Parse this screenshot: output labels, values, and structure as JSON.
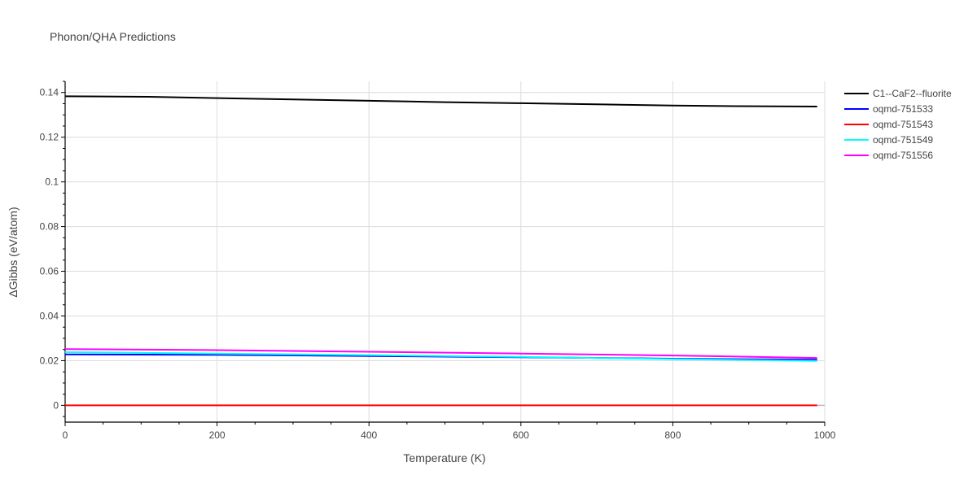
{
  "chart_data": {
    "type": "line",
    "title": "Phonon/QHA Predictions",
    "xlabel": "Temperature (K)",
    "ylabel": "ΔGibbs (eV/atom)",
    "xlim": [
      0,
      1000
    ],
    "ylim": [
      -0.0075,
      0.145
    ],
    "x_ticks": [
      0,
      200,
      400,
      600,
      800,
      1000
    ],
    "y_ticks": [
      0,
      0.02,
      0.04,
      0.06,
      0.08,
      0.1,
      0.12,
      0.14
    ],
    "x_tick_labels": [
      "0",
      "200",
      "400",
      "600",
      "800",
      "1000"
    ],
    "y_tick_labels": [
      "0",
      "0.02",
      "0.04",
      "0.06",
      "0.08",
      "0.1",
      "0.12",
      "0.14"
    ],
    "grid": true,
    "legend_position": "top-right outside plot",
    "series": [
      {
        "name": "C1--CaF2--fluorite",
        "color": "#000000",
        "x": [
          0,
          110,
          200,
          300,
          400,
          500,
          600,
          700,
          800,
          880,
          990
        ],
        "y": [
          0.1383,
          0.1381,
          0.1375,
          0.1369,
          0.1363,
          0.1357,
          0.1352,
          0.1347,
          0.1342,
          0.1339,
          0.1337
        ]
      },
      {
        "name": "oqmd-751533",
        "color": "#0000ff",
        "x": [
          0,
          200,
          400,
          600,
          800,
          990
        ],
        "y": [
          0.0228,
          0.0226,
          0.0221,
          0.0215,
          0.0209,
          0.0204
        ]
      },
      {
        "name": "oqmd-751543",
        "color": "#ff0000",
        "x": [
          0,
          200,
          400,
          600,
          800,
          990
        ],
        "y": [
          0,
          0,
          0,
          0,
          0,
          0
        ]
      },
      {
        "name": "oqmd-751549",
        "color": "#00ffff",
        "x": [
          0,
          200,
          400,
          600,
          800,
          990
        ],
        "y": [
          0.0238,
          0.0232,
          0.0225,
          0.0217,
          0.0207,
          0.0199
        ]
      },
      {
        "name": "oqmd-751556",
        "color": "#ff00ff",
        "x": [
          0,
          200,
          400,
          600,
          800,
          990
        ],
        "y": [
          0.0252,
          0.0247,
          0.024,
          0.0232,
          0.0223,
          0.0212
        ]
      }
    ]
  }
}
